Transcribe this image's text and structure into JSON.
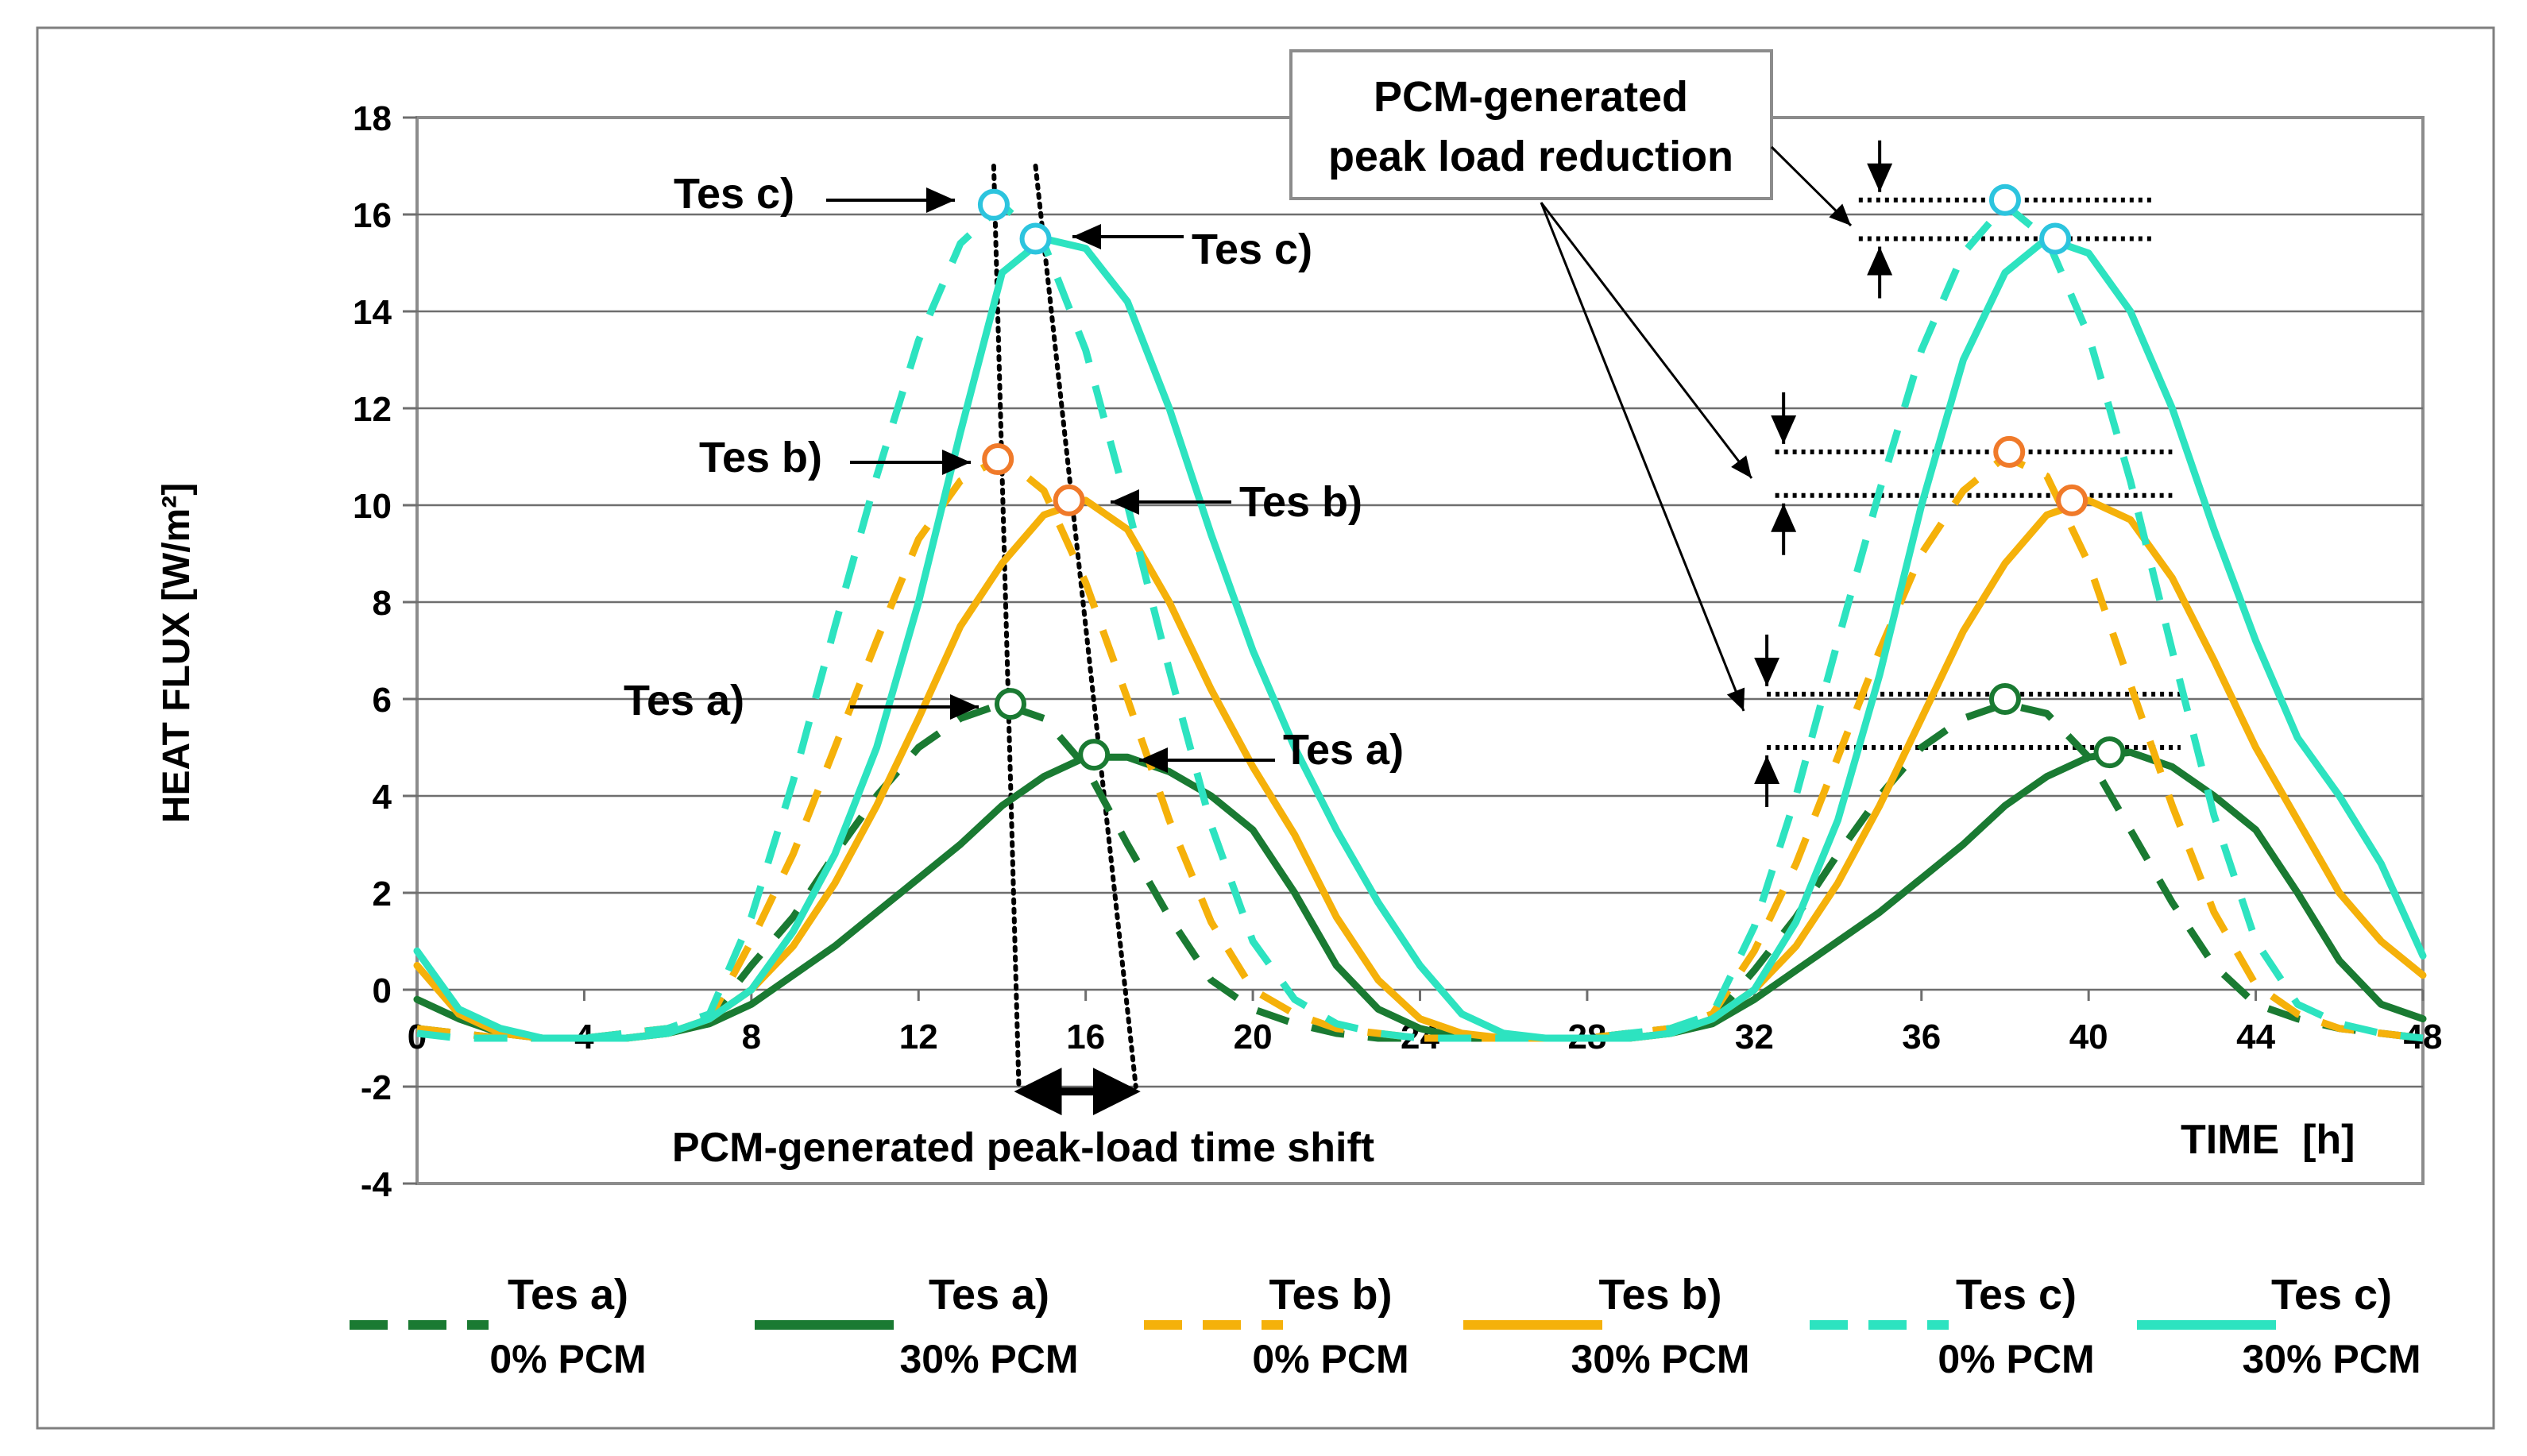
{
  "chart_data": {
    "type": "line",
    "xlabel": "TIME  [h]",
    "ylabel": "HEAT FLUX  [W/m²]",
    "xlim": [
      0,
      48
    ],
    "ylim": [
      -4,
      18
    ],
    "x_ticks": [
      0,
      4,
      8,
      12,
      16,
      20,
      24,
      28,
      32,
      36,
      40,
      44,
      48
    ],
    "y_ticks": [
      -4,
      -2,
      0,
      2,
      4,
      6,
      8,
      10,
      12,
      14,
      16,
      18
    ],
    "grid": "horizontal",
    "colors": {
      "a": "#1a7a32",
      "b": "#f5b10a",
      "c": "#2de3c0",
      "marker_b": "#f07a2a",
      "marker_c": "#2cc4de"
    },
    "x": [
      0,
      1,
      2,
      3,
      4,
      5,
      6,
      7,
      8,
      9,
      10,
      11,
      12,
      13,
      14,
      15,
      16,
      17,
      18,
      19,
      20,
      21,
      22,
      23,
      24,
      25,
      26,
      27,
      28,
      29,
      30,
      31,
      32,
      33,
      34,
      35,
      36,
      37,
      38,
      39,
      40,
      41,
      42,
      43,
      44,
      45,
      46,
      47,
      48
    ],
    "series": [
      {
        "name": "Tes a) 0% PCM",
        "style": "dashed",
        "color": "#1a7a32",
        "values": [
          -0.8,
          -0.9,
          -1.0,
          -1.0,
          -1.0,
          -0.9,
          -0.8,
          -0.6,
          0.5,
          1.5,
          2.8,
          4.0,
          5.0,
          5.6,
          5.9,
          5.6,
          4.6,
          3.0,
          1.5,
          0.2,
          -0.4,
          -0.7,
          -0.9,
          -1.0,
          -1.0,
          -1.0,
          -1.0,
          -1.0,
          -1.0,
          -0.9,
          -0.8,
          -0.6,
          0.4,
          1.5,
          2.8,
          4.0,
          5.0,
          5.6,
          5.9,
          5.7,
          4.8,
          3.3,
          1.8,
          0.5,
          -0.3,
          -0.6,
          -0.8,
          -0.9,
          -1.0
        ]
      },
      {
        "name": "Tes a) 30% PCM",
        "style": "solid",
        "color": "#1a7a32",
        "values": [
          -0.2,
          -0.6,
          -0.9,
          -1.0,
          -1.0,
          -1.0,
          -0.9,
          -0.7,
          -0.3,
          0.3,
          0.9,
          1.6,
          2.3,
          3.0,
          3.8,
          4.4,
          4.8,
          4.8,
          4.5,
          4.0,
          3.3,
          2.0,
          0.5,
          -0.4,
          -0.8,
          -1.0,
          -1.0,
          -1.0,
          -1.0,
          -1.0,
          -0.9,
          -0.7,
          -0.2,
          0.4,
          1.0,
          1.6,
          2.3,
          3.0,
          3.8,
          4.4,
          4.8,
          4.9,
          4.6,
          4.0,
          3.3,
          2.0,
          0.6,
          -0.3,
          -0.6
        ]
      },
      {
        "name": "Tes b) 0% PCM",
        "style": "dashed",
        "color": "#f5b10a",
        "values": [
          -0.8,
          -0.9,
          -1.0,
          -1.0,
          -1.0,
          -0.9,
          -0.8,
          -0.6,
          1.0,
          2.8,
          5.0,
          7.2,
          9.3,
          10.5,
          11.0,
          10.3,
          8.4,
          6.0,
          3.5,
          1.4,
          0.0,
          -0.5,
          -0.8,
          -0.9,
          -1.0,
          -1.0,
          -1.0,
          -1.0,
          -1.0,
          -0.9,
          -0.8,
          -0.5,
          0.8,
          2.6,
          4.8,
          7.0,
          9.0,
          10.3,
          11.0,
          10.6,
          8.8,
          6.3,
          3.8,
          1.6,
          0.1,
          -0.5,
          -0.8,
          -0.9,
          -1.0
        ]
      },
      {
        "name": "Tes b) 30% PCM",
        "style": "solid",
        "color": "#f5b10a",
        "values": [
          0.5,
          -0.5,
          -0.9,
          -1.0,
          -1.0,
          -1.0,
          -0.9,
          -0.6,
          0.0,
          0.9,
          2.2,
          3.8,
          5.6,
          7.5,
          8.8,
          9.8,
          10.1,
          9.5,
          8.0,
          6.2,
          4.6,
          3.2,
          1.5,
          0.2,
          -0.6,
          -0.9,
          -1.0,
          -1.0,
          -1.0,
          -1.0,
          -0.9,
          -0.6,
          0.0,
          0.9,
          2.2,
          3.8,
          5.6,
          7.4,
          8.8,
          9.8,
          10.1,
          9.7,
          8.5,
          6.8,
          5.0,
          3.5,
          2.0,
          1.0,
          0.3
        ]
      },
      {
        "name": "Tes c) 0% PCM",
        "style": "dashed",
        "color": "#2de3c0",
        "values": [
          -0.9,
          -1.0,
          -1.0,
          -1.0,
          -1.0,
          -0.9,
          -0.8,
          -0.5,
          1.5,
          4.3,
          7.5,
          10.6,
          13.4,
          15.4,
          16.2,
          15.4,
          13.2,
          10.0,
          6.6,
          3.4,
          1.0,
          -0.2,
          -0.7,
          -0.9,
          -1.0,
          -1.0,
          -1.0,
          -1.0,
          -1.0,
          -0.9,
          -0.8,
          -0.5,
          1.3,
          4.0,
          7.2,
          10.3,
          13.2,
          15.2,
          16.2,
          15.5,
          13.5,
          10.5,
          7.0,
          3.6,
          1.0,
          -0.3,
          -0.7,
          -0.9,
          -1.0
        ]
      },
      {
        "name": "Tes c) 30% PCM",
        "style": "solid",
        "color": "#2de3c0",
        "values": [
          0.8,
          -0.4,
          -0.8,
          -1.0,
          -1.0,
          -1.0,
          -0.9,
          -0.6,
          0.0,
          1.2,
          2.8,
          5.0,
          8.0,
          11.5,
          14.8,
          15.5,
          15.3,
          14.2,
          12.0,
          9.4,
          7.0,
          5.0,
          3.3,
          1.8,
          0.5,
          -0.5,
          -0.9,
          -1.0,
          -1.0,
          -1.0,
          -0.9,
          -0.6,
          0.0,
          1.4,
          3.5,
          6.5,
          10.0,
          13.0,
          14.8,
          15.5,
          15.2,
          14.0,
          12.0,
          9.5,
          7.2,
          5.2,
          4.0,
          2.6,
          0.7
        ]
      }
    ],
    "peak_markers": [
      {
        "series": 0,
        "x": 14.2,
        "y": 5.9
      },
      {
        "series": 1,
        "x": 16.2,
        "y": 4.85
      },
      {
        "series": 2,
        "x": 13.9,
        "y": 10.95
      },
      {
        "series": 3,
        "x": 15.6,
        "y": 10.1
      },
      {
        "series": 4,
        "x": 13.8,
        "y": 16.2
      },
      {
        "series": 5,
        "x": 14.8,
        "y": 15.5
      },
      {
        "series": 0,
        "x": 38.0,
        "y": 6.0
      },
      {
        "series": 1,
        "x": 40.5,
        "y": 4.9
      },
      {
        "series": 2,
        "x": 38.1,
        "y": 11.1
      },
      {
        "series": 3,
        "x": 39.6,
        "y": 10.1
      },
      {
        "series": 4,
        "x": 38.0,
        "y": 16.3
      },
      {
        "series": 5,
        "x": 39.2,
        "y": 15.5
      }
    ],
    "shift_lines": [
      {
        "x1": 13.8,
        "y1": 17.0,
        "x2": 14.4,
        "y2": -2.0
      },
      {
        "x1": 14.8,
        "y1": 17.0,
        "x2": 17.2,
        "y2": -2.0
      }
    ],
    "shift_arrow": {
      "x1": 14.4,
      "x2": 17.2,
      "y": -2.1
    },
    "reduction_pairs": [
      {
        "x1": 34.5,
        "x2": 41.5,
        "y_top": 16.3,
        "y_bottom": 15.5,
        "arrow_x": 35.0
      },
      {
        "x1": 32.5,
        "x2": 42.0,
        "y_top": 11.1,
        "y_bottom": 10.2,
        "arrow_x": 32.7
      },
      {
        "x1": 32.3,
        "x2": 42.2,
        "y_top": 6.1,
        "y_bottom": 5.0,
        "arrow_x": 32.3
      }
    ],
    "annotations": {
      "peak_labels": [
        "Tes c)",
        "Tes c)",
        "Tes b)",
        "Tes b)",
        "Tes a)",
        "Tes a)"
      ],
      "reduction_box": [
        "PCM-generated",
        "peak load reduction"
      ],
      "time_shift": "PCM-generated peak-load time shift"
    },
    "legend": [
      {
        "line1": "Tes a)",
        "line2": "0% PCM",
        "style": "dashed",
        "color": "#1a7a32"
      },
      {
        "line1": "Tes a)",
        "line2": "30% PCM",
        "style": "solid",
        "color": "#1a7a32"
      },
      {
        "line1": "Tes b)",
        "line2": "0% PCM",
        "style": "dashed",
        "color": "#f5b10a"
      },
      {
        "line1": "Tes b)",
        "line2": "30% PCM",
        "style": "solid",
        "color": "#f5b10a"
      },
      {
        "line1": "Tes c)",
        "line2": "0% PCM",
        "style": "dashed",
        "color": "#2de3c0"
      },
      {
        "line1": "Tes c)",
        "line2": "30% PCM",
        "style": "solid",
        "color": "#2de3c0"
      }
    ]
  }
}
